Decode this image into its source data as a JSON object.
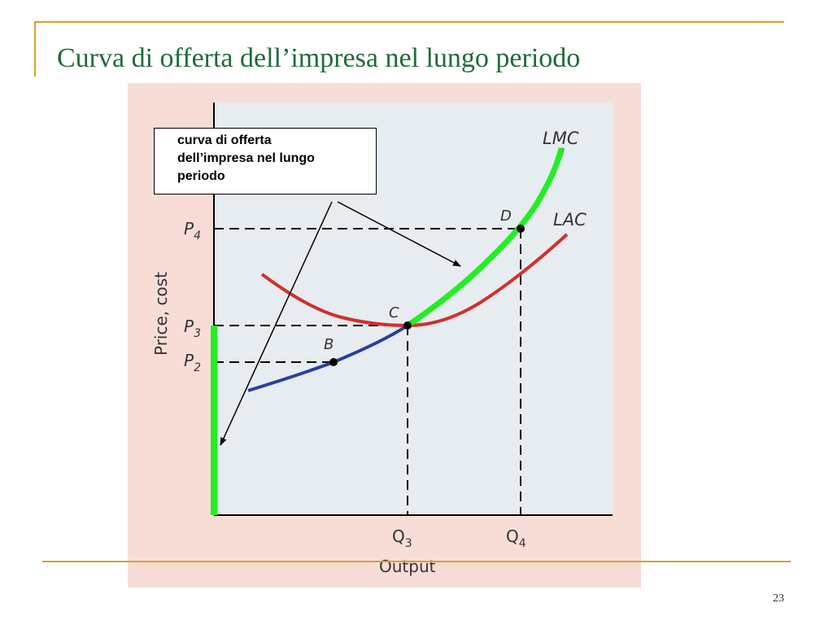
{
  "slide": {
    "title": "Curva di offerta dell’impresa nel lungo periodo",
    "page_number": "23"
  },
  "callout": {
    "text": "curva di offerta\ndell’impresa nel lungo\nperiodo"
  },
  "diagram": {
    "y_axis_label": "Price, cost",
    "x_axis_label": "Output",
    "curves": {
      "lmc": "LMC",
      "lac": "LAC"
    },
    "points": {
      "b": "B",
      "c": "C",
      "d": "D"
    },
    "y_ticks": {
      "p4": "P",
      "p4_sub": "4",
      "p3": "P",
      "p3_sub": "3",
      "p2": "P",
      "p2_sub": "2"
    },
    "x_ticks": {
      "q3": "Q",
      "q3_sub": "3",
      "q4": "Q",
      "q4_sub": "4"
    },
    "colors": {
      "supply_curve": "#22ee22",
      "lac_curve": "#d2302a",
      "lmc_curve": "#2a3f9a",
      "plot_background": "#e6ecf0",
      "panel_background": "#f8ddd7",
      "title": "#1f6b3a",
      "frame": "#d9a12a"
    }
  }
}
